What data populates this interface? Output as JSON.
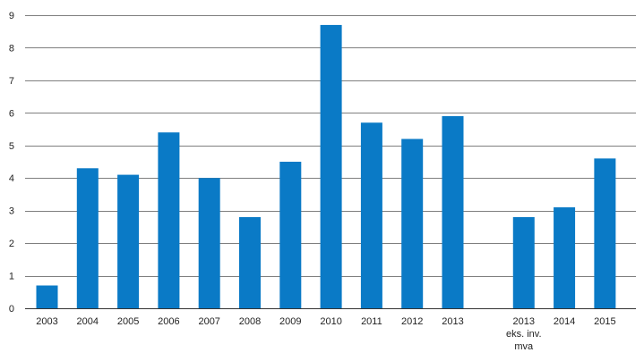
{
  "chart_data": {
    "type": "bar",
    "title": "",
    "xlabel": "",
    "ylabel": "",
    "ylim": [
      0,
      9
    ],
    "yticks": [
      "0",
      "1",
      "2",
      "3",
      "4",
      "5",
      "6",
      "7",
      "8",
      "9"
    ],
    "grid": true,
    "bar_color": "#0a7ac6",
    "categories": [
      [
        "2003"
      ],
      [
        "2004"
      ],
      [
        "2005"
      ],
      [
        "2006"
      ],
      [
        "2007"
      ],
      [
        "2008"
      ],
      [
        "2009"
      ],
      [
        "2010"
      ],
      [
        "2011"
      ],
      [
        "2012"
      ],
      [
        "2013"
      ],
      [
        "2013",
        "eks. inv.",
        "mva"
      ],
      [
        "2014"
      ],
      [
        "2015"
      ]
    ],
    "values": [
      0.7,
      4.3,
      4.1,
      5.4,
      4.0,
      2.8,
      4.5,
      8.7,
      5.7,
      5.2,
      5.9,
      2.8,
      3.1,
      4.6
    ]
  }
}
